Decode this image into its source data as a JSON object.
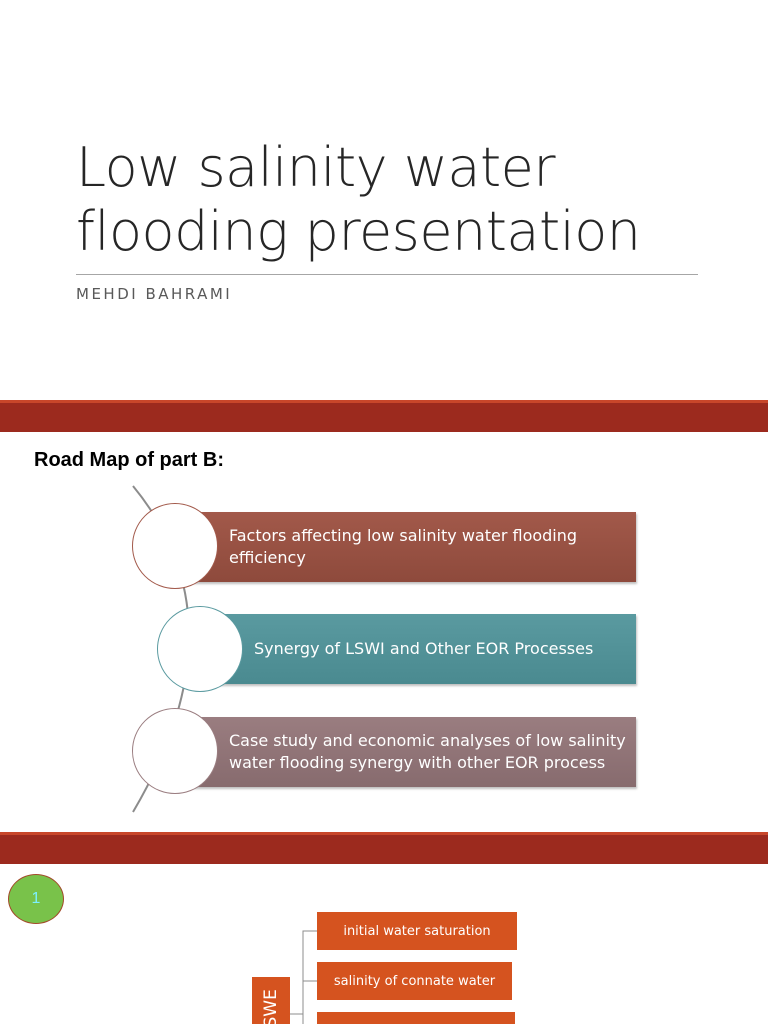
{
  "slide1": {
    "title_line1": "Low salinity water",
    "title_line2": "flooding presentation",
    "subtitle": "MEHDI BAHRAMI"
  },
  "slide2": {
    "heading": "Road Map of part B:",
    "items": [
      {
        "line1": "Factors affecting low salinity water flooding",
        "line2": "efficiency",
        "color": "#a2594a"
      },
      {
        "line1": "Synergy of LSWI and Other EOR Processes",
        "line2": "",
        "color": "#5a9aa0"
      },
      {
        "line1": "Case study and economic analyses of low salinity",
        "line2": "water flooding synergy with other EOR process",
        "color": "#9a7d80"
      }
    ]
  },
  "slide3": {
    "badge": "1",
    "vertical_label": "LSWE",
    "boxes": [
      "initial water saturation",
      "salinity of connate water",
      ""
    ],
    "accent_color": "#d5531f"
  },
  "colors": {
    "band": "#9c2a1e",
    "band_highlight": "#c8462a"
  }
}
